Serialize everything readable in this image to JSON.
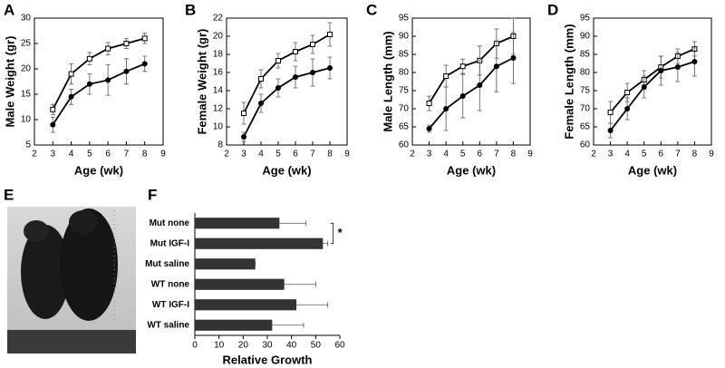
{
  "chart_data": [
    {
      "type": "line",
      "label": "A",
      "xlabel": "Age (wk)",
      "ylabel": "Male Weight (gr)",
      "x": [
        3,
        4,
        5,
        6,
        7,
        8
      ],
      "xlim": [
        2,
        9
      ],
      "xticks": [
        2,
        3,
        4,
        5,
        6,
        7,
        8,
        9
      ],
      "ylim": [
        5,
        30
      ],
      "yticks": [
        5,
        10,
        15,
        20,
        25,
        30
      ],
      "series": [
        {
          "color": "#000000",
          "marker": "open-square",
          "values": [
            12,
            19,
            22,
            24,
            25,
            26
          ],
          "errors": [
            1,
            2,
            1.2,
            1.2,
            1,
            1
          ]
        },
        {
          "color": "#000000",
          "marker": "filled-circle",
          "values": [
            9,
            14.5,
            17,
            17.8,
            19.5,
            21
          ],
          "errors": [
            1.5,
            1.5,
            2,
            3,
            2.5,
            1.5
          ]
        }
      ]
    },
    {
      "type": "line",
      "label": "B",
      "xlabel": "Age (wk)",
      "ylabel": "Female Weight (gr)",
      "x": [
        3,
        4,
        5,
        6,
        7,
        8
      ],
      "xlim": [
        2,
        9
      ],
      "xticks": [
        2,
        3,
        4,
        5,
        6,
        7,
        8,
        9
      ],
      "ylim": [
        8,
        22
      ],
      "yticks": [
        8,
        10,
        12,
        14,
        16,
        18,
        20,
        22
      ],
      "series": [
        {
          "color": "#000000",
          "marker": "open-square",
          "values": [
            11.5,
            15.3,
            17.3,
            18.3,
            19.1,
            20.2
          ],
          "errors": [
            1.2,
            1,
            0.8,
            1,
            1,
            1.3
          ]
        },
        {
          "color": "#000000",
          "marker": "filled-circle",
          "values": [
            8.9,
            12.6,
            14.3,
            15.5,
            16,
            16.5
          ],
          "errors": [
            0.5,
            1,
            1,
            1.2,
            1.5,
            1.2
          ]
        }
      ]
    },
    {
      "type": "line",
      "label": "C",
      "xlabel": "Age (wk)",
      "ylabel": "Male Length (mm)",
      "x": [
        3,
        4,
        5,
        6,
        7,
        8
      ],
      "xlim": [
        2,
        9
      ],
      "xticks": [
        2,
        3,
        4,
        5,
        6,
        7,
        8,
        9
      ],
      "ylim": [
        60,
        95
      ],
      "yticks": [
        60,
        65,
        70,
        75,
        80,
        85,
        90,
        95
      ],
      "series": [
        {
          "color": "#000000",
          "marker": "open-square",
          "values": [
            71.5,
            79,
            81.7,
            83.3,
            88,
            90
          ],
          "errors": [
            2,
            3,
            2,
            4,
            4,
            5
          ]
        },
        {
          "color": "#000000",
          "marker": "filled-circle",
          "values": [
            64.5,
            70,
            73.5,
            76.5,
            81.7,
            84
          ],
          "errors": [
            1,
            6,
            6,
            7,
            7,
            7
          ]
        }
      ]
    },
    {
      "type": "line",
      "label": "D",
      "xlabel": "Age (wk)",
      "ylabel": "Female Length (mm)",
      "x": [
        3,
        4,
        5,
        6,
        7,
        8
      ],
      "xlim": [
        2,
        9
      ],
      "xticks": [
        2,
        3,
        4,
        5,
        6,
        7,
        8,
        9
      ],
      "ylim": [
        60,
        95
      ],
      "yticks": [
        60,
        65,
        70,
        75,
        80,
        85,
        90,
        95
      ],
      "series": [
        {
          "color": "#000000",
          "marker": "open-square",
          "values": [
            69,
            74.5,
            78,
            81.5,
            84.5,
            86.5
          ],
          "errors": [
            3,
            2.5,
            2.5,
            3,
            2,
            2
          ]
        },
        {
          "color": "#000000",
          "marker": "filled-circle",
          "values": [
            64,
            70,
            76,
            80.5,
            81.5,
            83
          ],
          "errors": [
            2,
            3,
            3,
            4,
            4,
            4
          ]
        }
      ]
    },
    {
      "type": "image",
      "label": "E"
    },
    {
      "type": "barh",
      "label": "F",
      "xlabel": "Relative Growth",
      "annotation": "*",
      "categories": [
        "Mut none",
        "Mut IGF-I",
        "Mut saline",
        "WT none",
        "WT IGF-I",
        "WT saline"
      ],
      "values": [
        35,
        53,
        25,
        37,
        42,
        32
      ],
      "errors": [
        11,
        2,
        0,
        13,
        13,
        13
      ],
      "color": "#333333",
      "xlim": [
        0,
        60
      ],
      "xticks": [
        0,
        10,
        20,
        30,
        40,
        50,
        60
      ]
    }
  ]
}
